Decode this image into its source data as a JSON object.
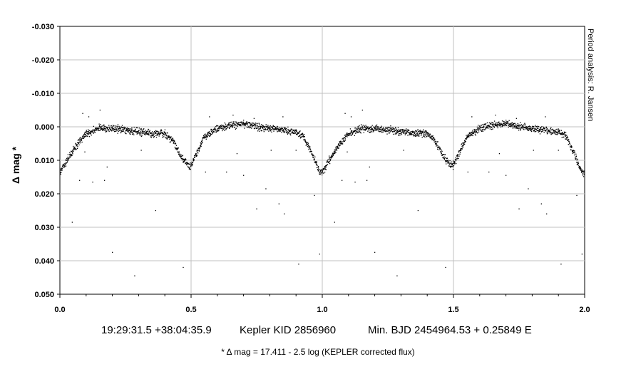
{
  "chart_data": {
    "type": "scatter",
    "title": "",
    "xlabel": "",
    "ylabel": "Δ mag *",
    "xlim": [
      0.0,
      2.0
    ],
    "ylim": [
      0.05,
      -0.03
    ],
    "y_axis_inverted": true,
    "grid": true,
    "legend": "none",
    "x_ticks": [
      "0.0",
      "0.5",
      "1.0",
      "1.5",
      "2.0"
    ],
    "y_ticks": [
      "-0.030",
      "-0.020",
      "-0.010",
      "0.000",
      "0.010",
      "0.020",
      "0.030",
      "0.040",
      "0.050"
    ],
    "series": [
      {
        "marker": "black dot",
        "light_curve_profile": {
          "x": [
            0.0,
            0.05,
            0.1,
            0.15,
            0.2,
            0.25,
            0.3,
            0.35,
            0.4,
            0.43,
            0.46,
            0.49,
            0.5,
            0.52,
            0.55,
            0.6,
            0.65,
            0.7,
            0.75,
            0.8,
            0.85,
            0.9,
            0.93,
            0.96,
            0.99,
            1.0
          ],
          "y": [
            0.0135,
            0.007,
            0.002,
            0.0005,
            0.0005,
            0.001,
            0.0015,
            0.002,
            0.002,
            0.004,
            0.0085,
            0.0115,
            0.0115,
            0.008,
            0.003,
            0.0005,
            -0.0005,
            -0.001,
            0.0,
            0.0005,
            0.001,
            0.0015,
            0.003,
            0.008,
            0.0135,
            0.0135
          ]
        },
        "outliers": {
          "x": [
            0.047,
            0.075,
            0.095,
            0.125,
            0.17,
            0.18,
            0.2,
            0.285,
            0.31,
            0.365,
            0.47,
            0.555,
            0.635,
            0.675,
            0.7,
            0.75,
            0.785,
            0.805,
            0.835,
            0.855,
            0.9,
            0.91,
            0.97,
            0.99,
            1.047,
            1.075,
            1.095,
            1.125,
            1.17,
            1.18,
            1.2,
            1.285,
            1.31,
            1.365,
            1.47,
            1.555,
            1.635,
            1.675,
            1.7,
            1.75,
            1.785,
            1.805,
            1.835,
            1.855,
            1.9,
            1.91,
            1.97,
            1.99
          ],
          "y": [
            0.0285,
            0.016,
            0.0075,
            0.0165,
            0.016,
            0.012,
            0.0375,
            0.0445,
            0.007,
            0.025,
            0.042,
            0.0135,
            0.0135,
            0.008,
            0.0145,
            0.0245,
            0.0185,
            0.007,
            0.023,
            0.026,
            0.007,
            0.041,
            0.0205,
            0.038,
            0.0285,
            0.016,
            0.0075,
            0.0165,
            0.016,
            0.012,
            0.0375,
            0.0445,
            0.007,
            0.025,
            0.042,
            0.0135,
            0.0135,
            0.008,
            0.0145,
            0.0245,
            0.0185,
            0.007,
            0.023,
            0.026,
            0.007,
            0.041,
            0.0205,
            0.038
          ]
        },
        "bright_points": {
          "x": [
            0.087,
            0.11,
            0.153,
            0.57,
            0.7,
            0.66,
            0.74,
            0.85,
            1.087,
            1.11,
            1.153,
            1.57,
            1.7,
            1.66,
            1.74,
            1.85
          ],
          "y": [
            -0.004,
            -0.003,
            -0.005,
            -0.003,
            -0.002,
            -0.0035,
            -0.0025,
            -0.003,
            -0.004,
            -0.003,
            -0.005,
            -0.003,
            -0.002,
            -0.0035,
            -0.0025,
            -0.003
          ]
        }
      }
    ]
  },
  "caption": {
    "coordinates": "19:29:31.5 +38:04:35.9",
    "target": "Kepler KID 2856960",
    "ephemeris": "Min. BJD 2454964.53 + 0.25849 E"
  },
  "footnote": "* Δ mag = 17.411 - 2.5 log (KEPLER corrected flux)",
  "credit": "Period analysis: R. Jansen"
}
